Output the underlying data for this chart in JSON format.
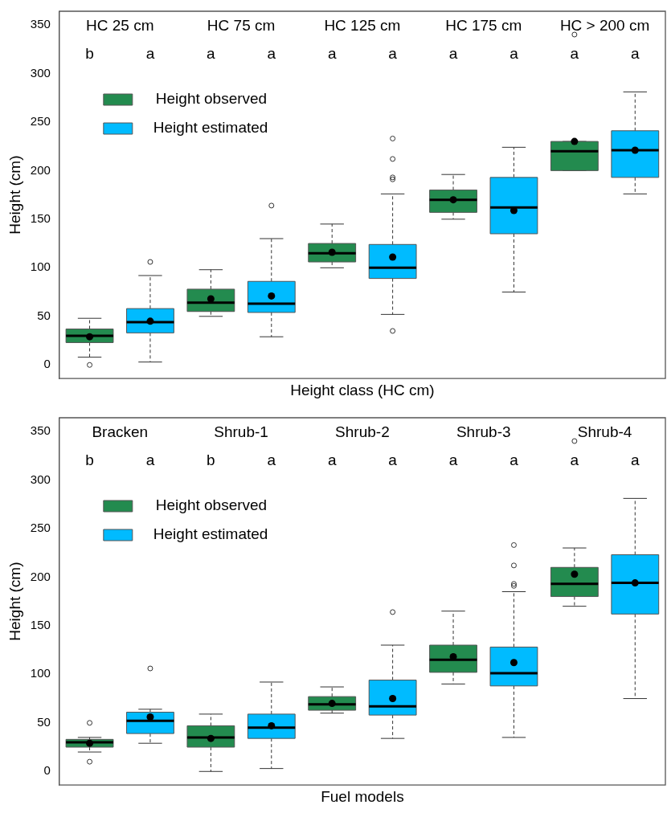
{
  "chart_data": [
    {
      "type": "box",
      "xlabel": "Height class (HC cm)",
      "ylabel": "Height (cm)",
      "categories": [
        "HC 25 cm",
        "HC 75 cm",
        "HC 125 cm",
        "HC 175 cm",
        "HC > 200 cm"
      ],
      "ylim": [
        -14,
        364
      ],
      "yticks": [
        0,
        50,
        100,
        150,
        200,
        250,
        300,
        350
      ],
      "legend": "top left",
      "series": [
        {
          "name": "Height observed",
          "color": "#238b4f",
          "boxes": [
            {
              "low": 8,
              "q1": 23,
              "median": 30,
              "q3": 37,
              "high": 48,
              "mean": 29,
              "outliers": [
                0
              ]
            },
            {
              "low": 50,
              "q1": 55,
              "median": 64,
              "q3": 78,
              "high": 98,
              "mean": 68
            },
            {
              "low": 100,
              "q1": 106,
              "median": 115,
              "q3": 125,
              "high": 145,
              "mean": 116
            },
            {
              "low": 150,
              "q1": 157,
              "median": 170,
              "q3": 180,
              "high": 196,
              "mean": 170
            },
            {
              "low": 200,
              "q1": 200,
              "median": 220,
              "q3": 230,
              "high": 230,
              "mean": 230,
              "outliers": [
                340
              ]
            }
          ]
        },
        {
          "name": "Height estimated",
          "color": "#00bbff",
          "boxes": [
            {
              "low": 3,
              "q1": 33,
              "median": 44,
              "q3": 58,
              "high": 92,
              "mean": 45,
              "outliers": [
                106
              ]
            },
            {
              "low": 29,
              "q1": 54,
              "median": 63,
              "q3": 86,
              "high": 130,
              "mean": 71,
              "outliers": [
                164
              ]
            },
            {
              "low": 52,
              "q1": 89,
              "median": 100,
              "q3": 124,
              "high": 176,
              "mean": 111,
              "outliers": [
                233,
                212,
                193,
                191,
                35
              ]
            },
            {
              "low": 75,
              "q1": 135,
              "median": 162,
              "q3": 193,
              "high": 224,
              "mean": 159
            },
            {
              "low": 176,
              "q1": 193,
              "median": 221,
              "q3": 241,
              "high": 281,
              "mean": 221
            }
          ]
        }
      ],
      "annotations": [
        "b",
        "a",
        "a",
        "a",
        "a",
        "a",
        "a",
        "a",
        "a",
        "a"
      ]
    },
    {
      "type": "box",
      "xlabel": "Fuel models",
      "ylabel": "Height (cm)",
      "categories": [
        "Bracken",
        "Shrub-1",
        "Shrub-2",
        "Shrub-3",
        "Shrub-4"
      ],
      "ylim": [
        -14,
        364
      ],
      "yticks": [
        0,
        50,
        100,
        150,
        200,
        250,
        300,
        350
      ],
      "legend": "top left",
      "series": [
        {
          "name": "Height observed",
          "color": "#238b4f",
          "boxes": [
            {
              "low": 20,
              "q1": 25,
              "median": 30,
              "q3": 33,
              "high": 35,
              "mean": 29,
              "outliers": [
                50,
                10
              ]
            },
            {
              "low": 0,
              "q1": 25,
              "median": 35,
              "q3": 47,
              "high": 59,
              "mean": 34
            },
            {
              "low": 60,
              "q1": 63,
              "median": 69,
              "q3": 77,
              "high": 87,
              "mean": 70
            },
            {
              "low": 90,
              "q1": 102,
              "median": 115,
              "q3": 130,
              "high": 165,
              "mean": 118
            },
            {
              "low": 170,
              "q1": 180,
              "median": 193,
              "q3": 210,
              "high": 230,
              "mean": 203,
              "outliers": [
                340
              ]
            }
          ]
        },
        {
          "name": "Height estimated",
          "color": "#00bbff",
          "boxes": [
            {
              "low": 29,
              "q1": 39,
              "median": 52,
              "q3": 61,
              "high": 64,
              "mean": 56,
              "outliers": [
                106
              ]
            },
            {
              "low": 3,
              "q1": 34,
              "median": 45,
              "q3": 59,
              "high": 92,
              "mean": 47
            },
            {
              "low": 34,
              "q1": 58,
              "median": 67,
              "q3": 94,
              "high": 130,
              "mean": 75,
              "outliers": [
                164
              ]
            },
            {
              "low": 35,
              "q1": 88,
              "median": 101,
              "q3": 128,
              "high": 185,
              "mean": 112,
              "outliers": [
                233,
                212,
                193,
                191
              ]
            },
            {
              "low": 75,
              "q1": 162,
              "median": 194,
              "q3": 223,
              "high": 281,
              "mean": 194
            }
          ]
        }
      ],
      "annotations": [
        "b",
        "a",
        "b",
        "a",
        "a",
        "a",
        "a",
        "a",
        "a",
        "a"
      ]
    }
  ]
}
